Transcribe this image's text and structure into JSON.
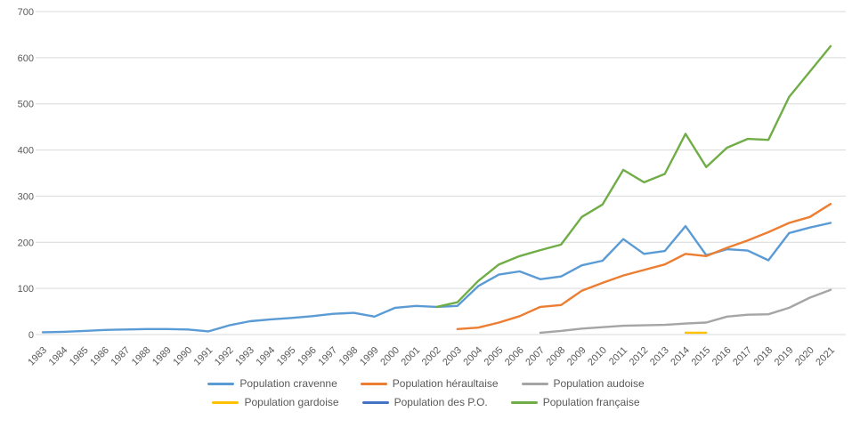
{
  "chart_data": {
    "type": "line",
    "title": "",
    "xlabel": "",
    "ylabel": "",
    "grid": true,
    "legend_position": "bottom",
    "y_ticks": [
      0,
      100,
      200,
      300,
      400,
      500,
      600,
      700
    ],
    "ylim": [
      0,
      700
    ],
    "x": [
      1983,
      1984,
      1985,
      1986,
      1987,
      1988,
      1989,
      1990,
      1991,
      1992,
      1993,
      1994,
      1995,
      1996,
      1997,
      1998,
      1999,
      2000,
      2001,
      2002,
      2003,
      2004,
      2005,
      2006,
      2007,
      2008,
      2009,
      2010,
      2011,
      2012,
      2013,
      2014,
      2015,
      2016,
      2017,
      2018,
      2019,
      2020,
      2021
    ],
    "series": [
      {
        "name": "Population cravenne",
        "color": "#5B9BD5",
        "values": [
          5,
          6,
          8,
          10,
          11,
          12,
          12,
          11,
          7,
          20,
          29,
          33,
          36,
          40,
          45,
          47,
          39,
          58,
          62,
          60,
          62,
          105,
          130,
          137,
          120,
          126,
          150,
          160,
          207,
          175,
          181,
          235,
          172,
          185,
          182,
          161,
          220,
          232,
          242
        ]
      },
      {
        "name": "Population héraultaise",
        "color": "#ED7D31",
        "values": [
          null,
          null,
          null,
          null,
          null,
          null,
          null,
          null,
          null,
          null,
          null,
          null,
          null,
          null,
          null,
          null,
          null,
          null,
          null,
          null,
          12,
          15,
          26,
          40,
          60,
          64,
          95,
          112,
          128,
          140,
          152,
          175,
          170,
          188,
          204,
          222,
          242,
          255,
          283
        ]
      },
      {
        "name": "Population audoise",
        "color": "#A5A5A5",
        "values": [
          null,
          null,
          null,
          null,
          null,
          null,
          null,
          null,
          null,
          null,
          null,
          null,
          null,
          null,
          null,
          null,
          null,
          null,
          null,
          null,
          null,
          null,
          null,
          null,
          4,
          8,
          13,
          16,
          19,
          20,
          21,
          24,
          26,
          39,
          43,
          44,
          58,
          80,
          97
        ]
      },
      {
        "name": "Population gardoise",
        "color": "#FFC000",
        "values": [
          null,
          null,
          null,
          null,
          null,
          null,
          null,
          null,
          null,
          null,
          null,
          null,
          null,
          null,
          null,
          null,
          null,
          null,
          null,
          null,
          null,
          null,
          null,
          null,
          null,
          null,
          null,
          null,
          null,
          null,
          null,
          4,
          4,
          null,
          null,
          null,
          null,
          null,
          null
        ]
      },
      {
        "name": "Population des P.O.",
        "color": "#4472C4",
        "values": [
          null,
          null,
          null,
          null,
          null,
          null,
          null,
          null,
          null,
          null,
          null,
          null,
          null,
          null,
          null,
          null,
          null,
          null,
          null,
          null,
          null,
          null,
          null,
          null,
          null,
          null,
          null,
          null,
          null,
          null,
          null,
          null,
          null,
          null,
          null,
          null,
          null,
          null,
          null
        ]
      },
      {
        "name": "Population française",
        "color": "#70AD47",
        "values": [
          null,
          null,
          null,
          null,
          null,
          null,
          null,
          null,
          null,
          null,
          null,
          null,
          null,
          null,
          null,
          null,
          null,
          null,
          null,
          60,
          70,
          116,
          152,
          170,
          183,
          195,
          255,
          282,
          357,
          330,
          348,
          435,
          363,
          405,
          424,
          422,
          515,
          570,
          625
        ]
      }
    ]
  },
  "style": {
    "grid_color": "#D9D9D9",
    "axis_color": "#D9D9D9",
    "text_color": "#595959"
  },
  "legend": {
    "rows": [
      [
        "Population cravenne",
        "Population héraultaise",
        "Population audoise"
      ],
      [
        "Population gardoise",
        "Population des P.O.",
        "Population française"
      ]
    ]
  }
}
